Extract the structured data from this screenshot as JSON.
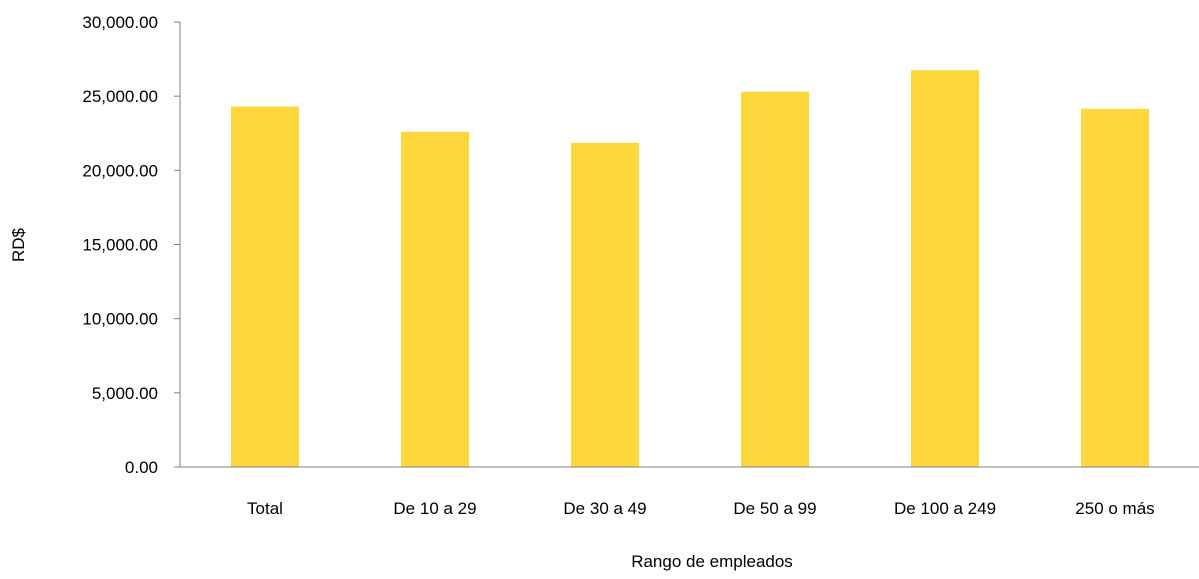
{
  "chart_data": {
    "type": "bar",
    "categories": [
      "Total",
      "De 10 a 29",
      "De 30 a 49",
      "De 50 a 99",
      "De 100 a 249",
      "250 o más"
    ],
    "values": [
      24300,
      22600,
      21850,
      25300,
      26750,
      24150
    ],
    "ylabel": "RD$",
    "xlabel": "Rango de empleados",
    "ylim": [
      0,
      30000
    ],
    "yticks": [
      0,
      5000,
      10000,
      15000,
      20000,
      25000,
      30000
    ],
    "ytick_labels": [
      "0.00",
      "5,000.00",
      "10,000.00",
      "15,000.00",
      "20,000.00",
      "25,000.00",
      "30,000.00"
    ],
    "grid": false,
    "legend": "none",
    "bar_color": "#FDD73C"
  }
}
